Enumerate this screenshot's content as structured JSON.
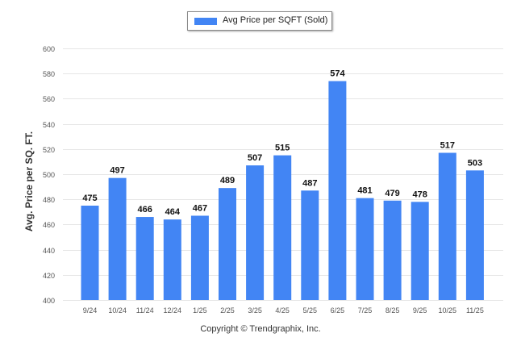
{
  "legend": {
    "label": "Avg Price per SQFT (Sold)"
  },
  "footer": {
    "copyright": "Copyright © Trendgraphix, Inc."
  },
  "colors": {
    "bar": "#4285f4",
    "grid": "#e6e6e6",
    "axis_text": "#555555",
    "label_text": "#111111"
  },
  "chart_data": {
    "type": "bar",
    "title": "",
    "xlabel": "",
    "ylabel": "Avg. Price per SQ. FT.",
    "categories": [
      "9/24",
      "10/24",
      "11/24",
      "12/24",
      "1/25",
      "2/25",
      "3/25",
      "4/25",
      "5/25",
      "6/25",
      "7/25",
      "8/25",
      "9/25",
      "10/25",
      "11/25"
    ],
    "series": [
      {
        "name": "Avg Price per SQFT (Sold)",
        "values": [
          475,
          497,
          466,
          464,
          467,
          489,
          507,
          515,
          487,
          574,
          481,
          479,
          478,
          517,
          503
        ]
      }
    ],
    "ylim": [
      400,
      600
    ],
    "yticks": [
      400,
      420,
      440,
      460,
      480,
      500,
      520,
      540,
      560,
      580,
      600
    ],
    "grid": true,
    "legend_position": "top-center"
  }
}
